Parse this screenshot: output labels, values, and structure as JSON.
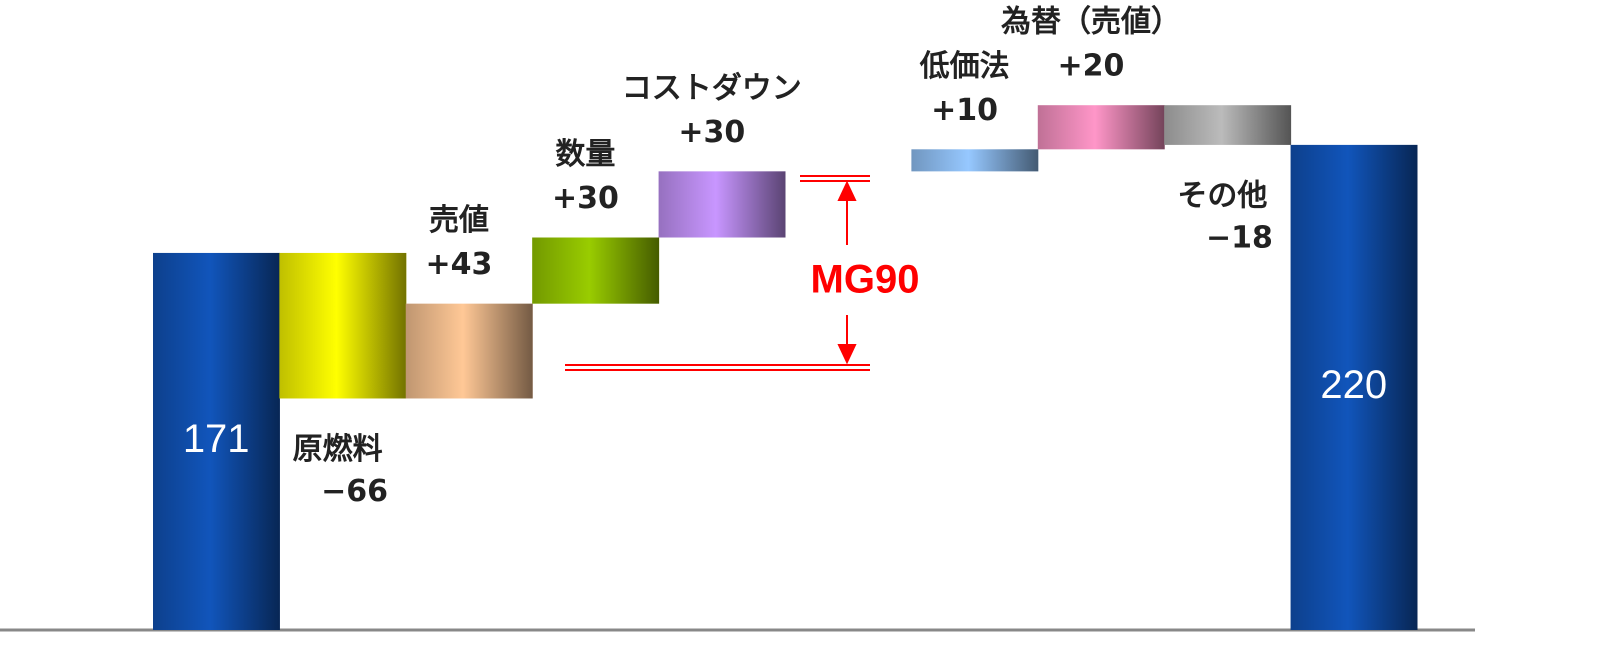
{
  "chart_data": {
    "type": "waterfall",
    "categories": [
      null,
      "原燃料",
      "売値",
      "数量",
      "コストダウン",
      null,
      "低価法",
      "為替（売値）",
      "その他",
      null
    ],
    "values": [
      171,
      -66,
      43,
      30,
      30,
      null,
      10,
      20,
      -18,
      220
    ],
    "value_labels": [
      "171",
      "−66",
      "+43",
      "+30",
      "+30",
      null,
      "+10",
      "+20",
      "−18",
      "220"
    ],
    "totals": [
      true,
      false,
      false,
      false,
      false,
      false,
      false,
      false,
      false,
      true
    ],
    "colors": [
      "#1155bb",
      "#ffff00",
      "#ffc896",
      "#99cc00",
      "#c896ff",
      null,
      "#96c8ff",
      "#ff96c8",
      "#bbbbbb",
      "#1155bb"
    ],
    "ylim": [
      0,
      285
    ],
    "annotation": {
      "text": "MG90",
      "color": "#ff0000"
    }
  }
}
